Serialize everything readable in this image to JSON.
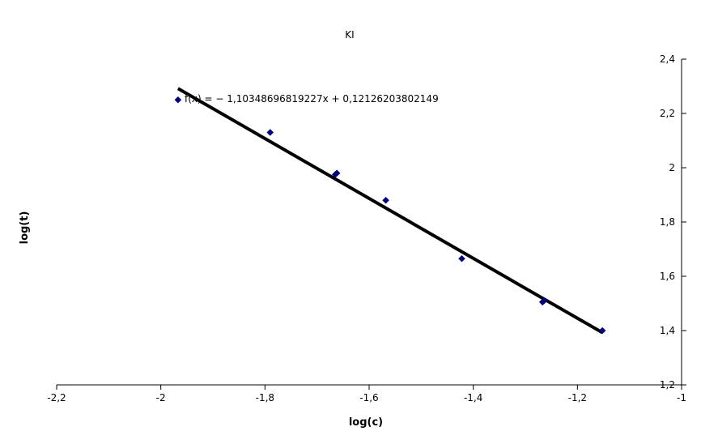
{
  "chart_data": {
    "type": "scatter",
    "title": "KI",
    "xlabel": "log(c)",
    "ylabel": "log(t)",
    "xlim": [
      -2.2,
      -1
    ],
    "ylim": [
      1.2,
      2.4
    ],
    "x_ticks": [
      -2.2,
      -2,
      -1.8,
      -1.6,
      -1.4,
      -1.2,
      -1
    ],
    "x_tick_labels": [
      "-2,2",
      "-2",
      "-1,8",
      "-1,6",
      "-1,4",
      "-1,2",
      "-1"
    ],
    "y_ticks": [
      1.2,
      1.4,
      1.6,
      1.8,
      2,
      2.2,
      2.4
    ],
    "y_tick_labels": [
      "1,2",
      "1,4",
      "1,6",
      "1,8",
      "2",
      "2,2",
      "2,4"
    ],
    "y_axis_side": "right",
    "grid": false,
    "legend": "none",
    "series": [
      {
        "x": [
          -1.967,
          -1.79,
          -1.665,
          -1.662,
          -1.568,
          -1.422,
          -1.267,
          -1.264,
          -1.152
        ],
        "y": [
          2.25,
          2.13,
          1.975,
          1.98,
          1.88,
          1.665,
          1.505,
          1.51,
          1.4
        ],
        "marker": "diamond",
        "color": "#000080"
      }
    ],
    "trendline": {
      "slope": -1.10348696819227,
      "intercept": 0.12126203802149,
      "x_range": [
        -1.967,
        -1.152
      ],
      "color": "#000000",
      "equation_label": "f(x) = − 1,10348696819227x + 0,12126203802149"
    }
  }
}
